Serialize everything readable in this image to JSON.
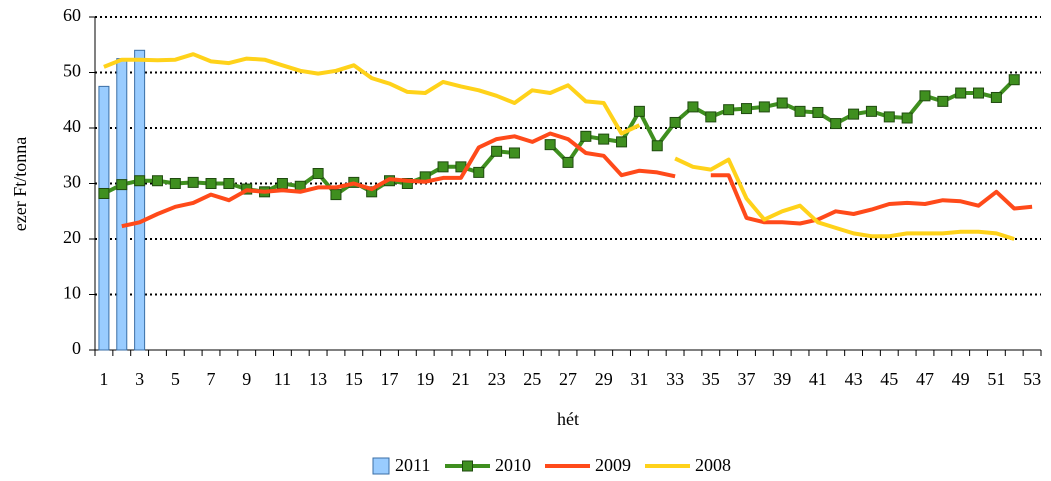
{
  "chart_data": {
    "type": "line",
    "y_label": "ezer Ft/tonna",
    "x_label": "hét",
    "categories": [
      1,
      null,
      3,
      null,
      5,
      null,
      7,
      null,
      9,
      null,
      11,
      null,
      13,
      null,
      15,
      null,
      17,
      null,
      19,
      null,
      21,
      null,
      23,
      null,
      25,
      null,
      27,
      null,
      29,
      null,
      31,
      null,
      33,
      null,
      35,
      null,
      37,
      null,
      39,
      null,
      41,
      null,
      43,
      null,
      45,
      null,
      47,
      null,
      49,
      null,
      51,
      null,
      53
    ],
    "ylim": [
      0,
      60
    ],
    "yticks": [
      0,
      10,
      20,
      30,
      40,
      50,
      60
    ],
    "grid": true,
    "legend": "bottom",
    "series": [
      {
        "name": "2011",
        "type": "bar",
        "color": "#99ccff",
        "values": [
          47.5,
          52.5,
          54,
          null,
          null,
          null,
          null,
          null,
          null,
          null,
          null,
          null,
          null,
          null,
          null,
          null,
          null,
          null,
          null,
          null,
          null,
          null,
          null,
          null,
          null,
          null,
          null,
          null,
          null,
          null,
          null,
          null,
          null,
          null,
          null,
          null,
          null,
          null,
          null,
          null,
          null,
          null,
          null,
          null,
          null,
          null,
          null,
          null,
          null,
          null,
          null,
          null,
          null
        ]
      },
      {
        "name": "2010",
        "type": "line",
        "marker": "square",
        "color": "#3f8f1f",
        "values": [
          28.2,
          29.8,
          30.5,
          30.5,
          30.0,
          30.2,
          30.0,
          30.0,
          29.0,
          28.5,
          30.0,
          29.5,
          31.8,
          28.0,
          30.2,
          28.5,
          30.5,
          30.0,
          31.2,
          33.0,
          33.0,
          32.0,
          35.8,
          35.5,
          null,
          37.0,
          33.8,
          38.5,
          38.0,
          37.5,
          43.0,
          36.8,
          41.0,
          43.8,
          42.0,
          43.3,
          43.5,
          43.8,
          44.5,
          43.0,
          42.8,
          40.8,
          42.5,
          43.0,
          42.0,
          41.8,
          45.8,
          44.8,
          46.3,
          46.3,
          45.5,
          48.7,
          null
        ]
      },
      {
        "name": "2009",
        "type": "line",
        "color": "#ff4a1a",
        "values": [
          null,
          22.3,
          23.0,
          24.5,
          25.8,
          26.5,
          28.0,
          27.0,
          28.8,
          28.5,
          28.8,
          28.5,
          29.3,
          29.3,
          30.0,
          29.0,
          30.8,
          30.5,
          30.3,
          31.0,
          31.0,
          36.5,
          38.0,
          38.5,
          37.5,
          39.0,
          38.0,
          35.5,
          35.0,
          31.5,
          32.3,
          32.0,
          31.3,
          null,
          31.5,
          31.5,
          23.8,
          23.0,
          23.0,
          22.8,
          23.5,
          25.0,
          24.5,
          25.3,
          26.3,
          26.5,
          26.3,
          27.0,
          26.8,
          26.0,
          28.5,
          25.5,
          25.8
        ]
      },
      {
        "name": "2008",
        "type": "line",
        "color": "#ffd21a",
        "values": [
          51.0,
          52.3,
          52.3,
          52.2,
          52.3,
          53.3,
          52.0,
          51.7,
          52.5,
          52.3,
          51.3,
          50.3,
          49.8,
          50.3,
          51.3,
          49.0,
          48.0,
          46.5,
          46.3,
          48.3,
          47.5,
          46.8,
          45.8,
          44.5,
          46.8,
          46.3,
          47.7,
          44.8,
          44.5,
          39.0,
          40.5,
          null,
          34.5,
          33.0,
          32.5,
          34.3,
          27.3,
          23.5,
          25.0,
          26.0,
          23.0,
          22.0,
          21.0,
          20.5,
          20.5,
          21.0,
          21.0,
          21.0,
          21.3,
          21.3,
          21.0,
          20.0,
          null
        ]
      }
    ]
  }
}
